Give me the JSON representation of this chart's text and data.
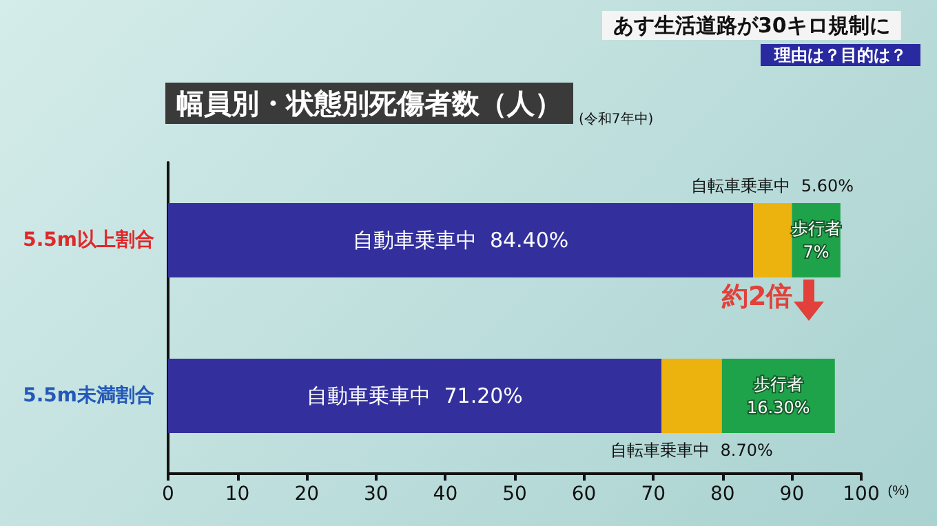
{
  "chart_data": {
    "type": "bar",
    "orientation": "horizontal",
    "stacked": true,
    "title": "幅員別・状態別死傷者数（人）",
    "subtitle": "(令和7年中)",
    "xlabel": "(%)",
    "categories": [
      "5.5m以上割合",
      "5.5m未満割合"
    ],
    "series": [
      {
        "name": "自動車乗車中",
        "color": "#33309e",
        "values": [
          84.4,
          71.2
        ],
        "value_labels": [
          "84.40%",
          "71.20%"
        ]
      },
      {
        "name": "自転車乗車中",
        "color": "#ecb20e",
        "values": [
          5.6,
          8.7
        ],
        "value_labels": [
          "5.60%",
          "8.70%"
        ]
      },
      {
        "name": "歩行者",
        "color": "#1fa34a",
        "values": [
          7,
          16.3
        ],
        "value_labels": [
          "7%",
          "16.30%"
        ]
      }
    ],
    "xlim": [
      0,
      100
    ],
    "xticks": [
      0,
      10,
      20,
      30,
      40,
      50,
      60,
      70,
      80,
      90,
      100
    ],
    "grid": false,
    "legend": false,
    "annotations": [
      "あす生活道路が30キロ規制に",
      "理由は？目的は？",
      "約2倍"
    ]
  }
}
